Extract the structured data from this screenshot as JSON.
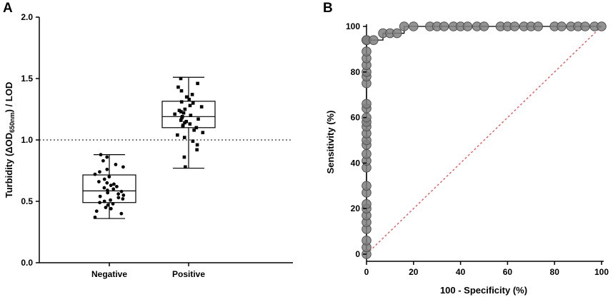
{
  "panels": {
    "A": {
      "letter": "A",
      "chart_data": {
        "type": "box",
        "title": "",
        "xlabel": "",
        "ylabel_parts": {
          "pre": "Turbidity (ΔOD",
          "sub": "650nm",
          "post": ") / LOD"
        },
        "ylim": [
          0,
          2
        ],
        "yticks": [
          "0.0",
          "0.5",
          "1.0",
          "1.5",
          "2.0"
        ],
        "ytick_values": [
          0,
          0.5,
          1.0,
          1.5,
          2.0
        ],
        "threshold": 1.0,
        "categories": [
          "Negative",
          "Positive"
        ],
        "boxes": [
          {
            "name": "Negative",
            "min": 0.36,
            "q1": 0.49,
            "median": 0.585,
            "q3": 0.715,
            "max": 0.88,
            "points": [
              0.37,
              0.4,
              0.42,
              0.44,
              0.45,
              0.47,
              0.48,
              0.49,
              0.5,
              0.51,
              0.52,
              0.53,
              0.54,
              0.55,
              0.56,
              0.57,
              0.58,
              0.59,
              0.6,
              0.61,
              0.62,
              0.63,
              0.64,
              0.65,
              0.66,
              0.68,
              0.7,
              0.72,
              0.74,
              0.76,
              0.78,
              0.8,
              0.83,
              0.86,
              0.88
            ]
          },
          {
            "name": "Positive",
            "min": 0.77,
            "q1": 1.1,
            "median": 1.19,
            "q3": 1.315,
            "max": 1.51,
            "points": [
              0.78,
              0.86,
              0.92,
              0.96,
              0.99,
              1.02,
              1.04,
              1.06,
              1.08,
              1.1,
              1.11,
              1.12,
              1.13,
              1.14,
              1.15,
              1.16,
              1.17,
              1.18,
              1.19,
              1.2,
              1.21,
              1.22,
              1.23,
              1.24,
              1.25,
              1.27,
              1.28,
              1.3,
              1.31,
              1.33,
              1.35,
              1.37,
              1.4,
              1.43,
              1.46,
              1.5
            ]
          }
        ]
      }
    },
    "B": {
      "letter": "B",
      "chart_data": {
        "type": "line",
        "title": "",
        "xlabel": "100 - Specificity (%)",
        "ylabel": "Sensitivity (%)",
        "xlim": [
          0,
          100
        ],
        "ylim": [
          0,
          100
        ],
        "xticks": [
          "0",
          "20",
          "40",
          "60",
          "80",
          "100"
        ],
        "xtick_values": [
          0,
          20,
          40,
          60,
          80,
          100
        ],
        "yticks": [
          "0",
          "20",
          "40",
          "60",
          "80",
          "100"
        ],
        "ytick_values": [
          0,
          20,
          40,
          60,
          80,
          100
        ],
        "series": [
          {
            "name": "ROC curve",
            "style": "step-markers",
            "x": [
              0,
              0,
              0,
              0,
              0,
              0,
              0,
              0,
              0,
              0,
              0,
              0,
              0,
              0,
              0,
              0,
              0,
              0,
              0,
              0,
              0,
              0,
              0,
              0,
              0,
              0,
              0,
              0,
              0,
              0,
              0,
              0,
              0,
              3,
              7,
              10,
              13,
              16,
              20,
              27,
              30,
              33,
              37,
              40,
              43,
              47,
              50,
              57,
              60,
              63,
              67,
              70,
              73,
              80,
              83,
              87,
              90,
              93,
              97,
              100
            ],
            "y": [
              0,
              3,
              6,
              11,
              14,
              17,
              20,
              22,
              27,
              30,
              38,
              41,
              44,
              48,
              50,
              53,
              56,
              58,
              60,
              64,
              66,
              75,
              78,
              80,
              83,
              86,
              89,
              94,
              94,
              94,
              94,
              94,
              94,
              94,
              97,
              97,
              97,
              100,
              100,
              100,
              100,
              100,
              100,
              100,
              100,
              100,
              100,
              100,
              100,
              100,
              100,
              100,
              100,
              100,
              100,
              100,
              100,
              100,
              100,
              100
            ]
          },
          {
            "name": "Reference line",
            "style": "dashed",
            "x": [
              0,
              100
            ],
            "y": [
              0,
              100
            ]
          }
        ],
        "colors": {
          "marker": "#808080",
          "marker_edge": "#505050",
          "reference": "#e05050"
        }
      }
    }
  }
}
